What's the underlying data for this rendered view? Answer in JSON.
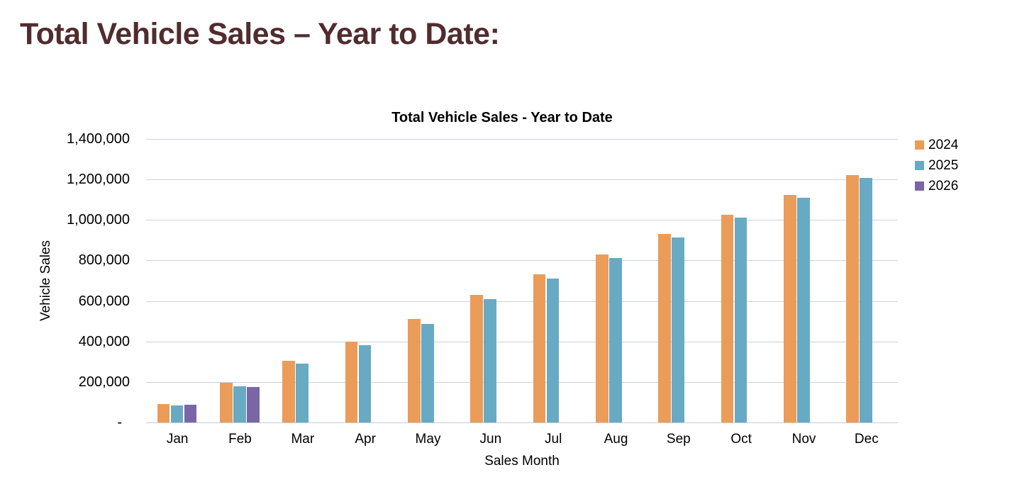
{
  "page": {
    "title": "Total Vehicle Sales – Year to Date:"
  },
  "chart": {
    "title": "Total Vehicle Sales - Year to Date",
    "y_axis_title": "Vehicle Sales",
    "x_axis_title": "Sales Month",
    "y_tick_labels": [
      "1,400,000",
      "1,200,000",
      "1,000,000",
      "800,000",
      "600,000",
      "400,000",
      "200,000",
      "-"
    ]
  },
  "chart_data": {
    "type": "bar",
    "title": "Total Vehicle Sales - Year to Date",
    "xlabel": "Sales Month",
    "ylabel": "Vehicle Sales",
    "categories": [
      "Jan",
      "Feb",
      "Mar",
      "Apr",
      "May",
      "Jun",
      "Jul",
      "Aug",
      "Sep",
      "Oct",
      "Nov",
      "Dec"
    ],
    "series": [
      {
        "name": "2024",
        "color": "#EA9C58",
        "values": [
          90000,
          195000,
          305000,
          400000,
          510000,
          630000,
          730000,
          830000,
          930000,
          1025000,
          1125000,
          1220000
        ]
      },
      {
        "name": "2025",
        "color": "#68AAC3",
        "values": [
          84000,
          180000,
          290000,
          380000,
          485000,
          608000,
          712000,
          812000,
          915000,
          1012000,
          1110000,
          1208000
        ]
      },
      {
        "name": "2026",
        "color": "#7A66A5",
        "values": [
          87000,
          175000,
          null,
          null,
          null,
          null,
          null,
          null,
          null,
          null,
          null,
          null
        ]
      }
    ],
    "ylim": [
      0,
      1400000
    ],
    "ytick_step": 200000,
    "grid": "horizontal-only",
    "legend_position": "top-right"
  },
  "colors": {
    "page_title": "#512C2E",
    "chart_text": "#000000",
    "gridline": "#C9D3E1",
    "background": "#FFFFFF"
  }
}
